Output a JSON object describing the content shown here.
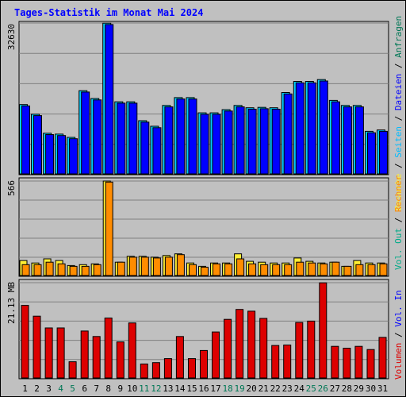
{
  "title": "Tages-Statistik im Monat Mai 2024",
  "colors": {
    "background": "#c0c0c0",
    "title": "#0000ff",
    "grid": "#808080",
    "anfragen": "#00ccff",
    "anfragen_legend": "#007755",
    "dateien": "#0000ff",
    "seiten": "#00bbff",
    "besuche": "#ffee33",
    "rechner": "#ff8c00",
    "vol_out": "#00aa88",
    "vol_in": "#0000ff",
    "volumen": "#dd0000",
    "weekend_label": "#007755"
  },
  "legend": {
    "top": [
      "Anfragen",
      "Dateien",
      "Seiten",
      "Besuche"
    ],
    "middle": [
      "Rechner",
      "Vol. Out"
    ],
    "bottom": [
      "Vol. In",
      "Volumen"
    ]
  },
  "chart_data": {
    "type": "bar",
    "title": "Tages-Statistik im Monat Mai 2024",
    "x": [
      "1",
      "2",
      "3",
      "4",
      "5",
      "6",
      "7",
      "8",
      "9",
      "10",
      "11",
      "12",
      "13",
      "14",
      "15",
      "16",
      "17",
      "18",
      "19",
      "20",
      "21",
      "22",
      "23",
      "24",
      "25",
      "26",
      "27",
      "28",
      "29",
      "30",
      "31"
    ],
    "weekend_days": [
      "4",
      "5",
      "11",
      "12",
      "18",
      "19",
      "25",
      "26"
    ],
    "panels": [
      {
        "name": "top",
        "max_label": "32630",
        "ylim": [
          0,
          32630
        ],
        "series": [
          {
            "name": "Anfragen",
            "values": [
              15000,
              12900,
              8800,
              8600,
              7900,
              18000,
              16300,
              32600,
              15600,
              15600,
              11500,
              10300,
              14800,
              16500,
              16500,
              13200,
              13200,
              13900,
              14800,
              14300,
              14400,
              14300,
              17600,
              20000,
              20000,
              20400,
              15900,
              14800,
              14800,
              9200,
              9500
            ]
          },
          {
            "name": "Dateien",
            "values": [
              14700,
              12600,
              8500,
              8300,
              7600,
              17700,
              16000,
              32300,
              15300,
              15300,
              11200,
              10000,
              14500,
              16200,
              16200,
              12900,
              12900,
              13600,
              14500,
              14000,
              14100,
              14000,
              17300,
              19700,
              19700,
              20100,
              15600,
              14500,
              14500,
              8900,
              9200
            ]
          }
        ]
      },
      {
        "name": "middle",
        "max_label": "566",
        "ylim": [
          0,
          566
        ],
        "series": [
          {
            "name": "Besuche",
            "values": [
              90,
              75,
              100,
              90,
              60,
              65,
              70,
              566,
              80,
              115,
              115,
              110,
              120,
              130,
              75,
              55,
              75,
              75,
              130,
              85,
              80,
              75,
              75,
              105,
              85,
              75,
              80,
              55,
              90,
              75,
              75
            ]
          },
          {
            "name": "Rechner",
            "values": [
              65,
              65,
              80,
              70,
              55,
              55,
              65,
              560,
              80,
              110,
              110,
              105,
              110,
              125,
              65,
              50,
              70,
              70,
              100,
              70,
              65,
              65,
              65,
              80,
              75,
              70,
              80,
              55,
              65,
              65,
              70
            ]
          }
        ]
      },
      {
        "name": "bottom",
        "max_label": "21.13 MB",
        "ylim": [
          0,
          21.13
        ],
        "series": [
          {
            "name": "Volumen",
            "values": [
              16.1,
              13.7,
              11.1,
              11.1,
              3.6,
              10.4,
              9.2,
              13.3,
              8.0,
              12.2,
              3.1,
              3.4,
              4.3,
              9.2,
              4.3,
              6.1,
              10.2,
              13.0,
              15.2,
              14.8,
              13.2,
              7.2,
              7.3,
              12.3,
              12.6,
              21.1,
              7.0,
              6.6,
              7.0,
              6.3,
              9.0
            ]
          }
        ]
      }
    ]
  }
}
